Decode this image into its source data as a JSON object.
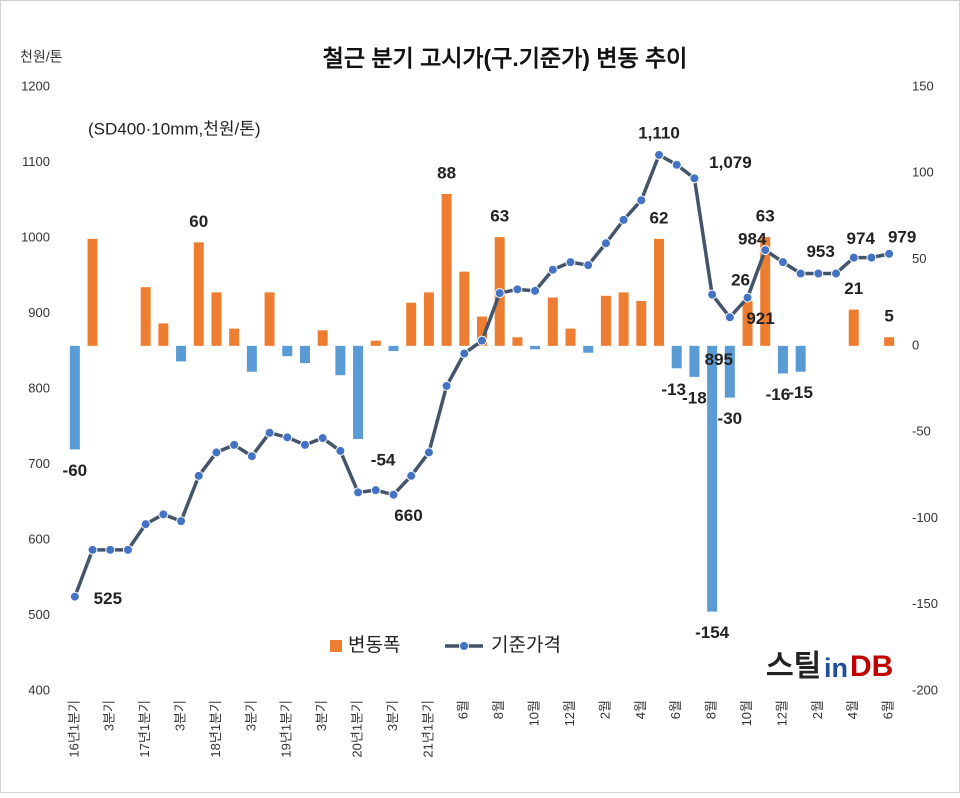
{
  "chart_data": {
    "type": "bar_line",
    "title": "철근 분기 고시가(구.기준가) 변동 추이",
    "subtitle": "(SD400·10mm,천원/톤)",
    "y_axis_label": "천원/톤",
    "categories": [
      "16년1분기",
      null,
      "3분기",
      null,
      "17년1분기",
      null,
      "3분기",
      null,
      "18년1분기",
      null,
      "3분기",
      null,
      "19년1분기",
      null,
      "3분기",
      null,
      "20년1분기",
      null,
      "3분기",
      null,
      "21년1분기",
      null,
      "6월",
      null,
      "8월",
      null,
      "10월",
      null,
      "12월",
      null,
      "2월",
      null,
      "4월",
      null,
      "6월",
      null,
      "8월",
      null,
      "10월",
      null,
      "12월",
      null,
      "2월",
      null,
      "4월",
      null,
      "6월"
    ],
    "series": [
      {
        "name": "변동폭",
        "type": "bar",
        "axis": "y2",
        "color": "#ed7d31",
        "negative_color": "#5b9bd5",
        "values": [
          -60,
          62,
          0,
          0,
          34,
          13,
          -9,
          60,
          31,
          10,
          -15,
          31,
          -6,
          -10,
          9,
          -17,
          -54,
          3,
          -3,
          25,
          31,
          88,
          43,
          17,
          63,
          5,
          -2,
          28,
          10,
          -4,
          29,
          31,
          26,
          62,
          -13,
          -18,
          -154,
          -30,
          26,
          63,
          -16,
          -15,
          0,
          0,
          21,
          0,
          5
        ],
        "value_labels": [
          "-60",
          null,
          null,
          null,
          null,
          null,
          null,
          "60",
          null,
          null,
          null,
          null,
          null,
          null,
          null,
          null,
          "-54",
          null,
          null,
          null,
          null,
          "88",
          null,
          null,
          "63",
          null,
          null,
          null,
          null,
          null,
          null,
          null,
          null,
          "62",
          "-13",
          "-18",
          "-154",
          "-30",
          "26",
          "63",
          "-16",
          "-15",
          null,
          null,
          "21",
          null,
          "5"
        ]
      },
      {
        "name": "기준가격",
        "type": "line",
        "axis": "y",
        "color": "#44546a",
        "marker_color": "#4472c4",
        "values": [
          525,
          587,
          587,
          587,
          621,
          634,
          625,
          685,
          716,
          726,
          711,
          742,
          736,
          726,
          735,
          718,
          663,
          666,
          660,
          685,
          716,
          804,
          847,
          864,
          927,
          932,
          930,
          958,
          968,
          964,
          993,
          1024,
          1050,
          1110,
          1097,
          1079,
          925,
          895,
          921,
          984,
          968,
          953,
          953,
          953,
          974,
          974,
          979
        ],
        "value_labels": [
          "525",
          null,
          null,
          null,
          null,
          null,
          null,
          null,
          null,
          null,
          null,
          null,
          null,
          null,
          null,
          null,
          null,
          null,
          "660",
          null,
          null,
          null,
          null,
          null,
          null,
          null,
          null,
          null,
          null,
          null,
          null,
          null,
          null,
          "1,110",
          null,
          "1,079",
          null,
          "895",
          "921",
          "984",
          null,
          "953",
          null,
          null,
          "974",
          null,
          "979"
        ]
      }
    ],
    "ylim": [
      400,
      1200
    ],
    "yticks": [
      400,
      500,
      600,
      700,
      800,
      900,
      1000,
      1100,
      1200
    ],
    "y2lim": [
      -200,
      150
    ],
    "y2ticks": [
      -200,
      -150,
      -100,
      -50,
      0,
      50,
      100,
      150
    ],
    "grid": false,
    "legend": "bottom",
    "logo": [
      "스틸",
      "in",
      "DB"
    ]
  }
}
